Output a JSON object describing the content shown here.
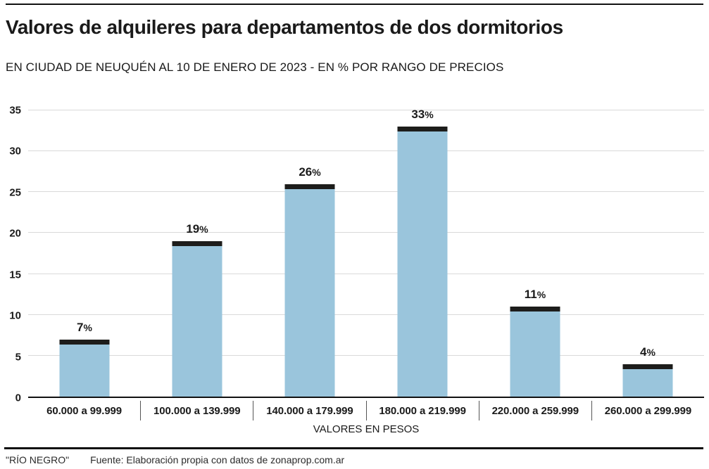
{
  "header": {
    "title": "Valores de alquileres para departamentos de dos dormitorios",
    "subtitle": "EN CIUDAD DE NEUQUÉN AL 10 DE ENERO DE 2023 - EN % POR RANGO DE PRECIOS"
  },
  "chart_data": {
    "type": "bar",
    "title": "Valores de alquileres para departamentos de dos dormitorios",
    "subtitle": "EN CIUDAD DE NEUQUÉN AL 10 DE ENERO DE 2023 - EN % POR RANGO DE PRECIOS",
    "categories": [
      "60.000 a 99.999",
      "100.000 a 139.999",
      "140.000 a 179.999",
      "180.000 a 219.999",
      "220.000 a 259.999",
      "260.000 a 299.999"
    ],
    "values": [
      7,
      19,
      26,
      33,
      11,
      4
    ],
    "unit": "%",
    "value_labels": [
      "7%",
      "19%",
      "26%",
      "33%",
      "11%",
      "4%"
    ],
    "xlabel": "VALORES EN PESOS",
    "ylabel": "",
    "ylim": [
      0,
      35
    ],
    "yticks": [
      0,
      5,
      10,
      15,
      20,
      25,
      30,
      35
    ],
    "grid": true,
    "legend": "none",
    "colors": {
      "bar": "#9ac5dc",
      "bar_cap": "#1d1d1b",
      "gridline": "#d9d9d9",
      "axis": "#111111"
    }
  },
  "footer": {
    "brand": "\"RÍO NEGRO\"",
    "source": "Fuente: Elaboración propia con datos de zonaprop.com.ar"
  }
}
